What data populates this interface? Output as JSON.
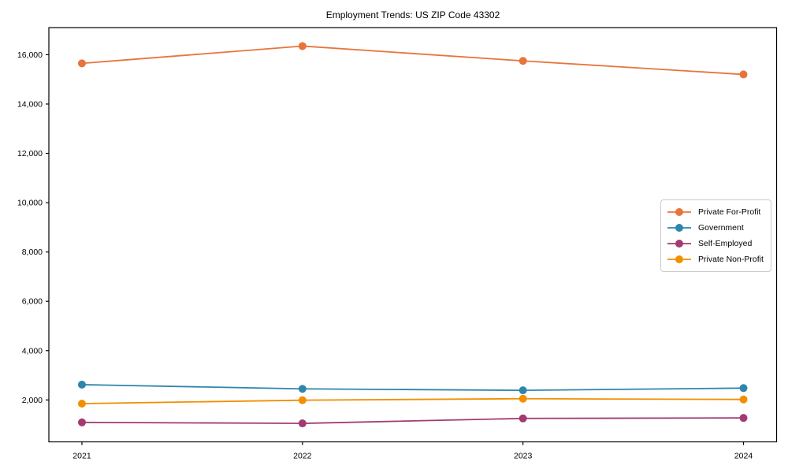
{
  "figure": {
    "title": "Employment Trends: US ZIP Code 43302"
  },
  "chart_data": {
    "type": "line",
    "title": "Employment Trends: US ZIP Code 43302",
    "categories": [
      "2021",
      "2022",
      "2023",
      "2024"
    ],
    "series": [
      {
        "name": "Private For-Profit",
        "color": "#E8743B",
        "values": [
          15650,
          16350,
          15750,
          15200
        ]
      },
      {
        "name": "Government",
        "color": "#2E86AB",
        "values": [
          2620,
          2450,
          2390,
          2480
        ]
      },
      {
        "name": "Self-Employed",
        "color": "#A23B72",
        "values": [
          1090,
          1050,
          1250,
          1270
        ]
      },
      {
        "name": "Private Non-Profit",
        "color": "#F18F01",
        "values": [
          1850,
          1990,
          2050,
          2020
        ]
      }
    ],
    "xlabel": "",
    "ylabel": "",
    "yticks": {
      "values": [
        2000,
        4000,
        6000,
        8000,
        10000,
        12000,
        14000,
        16000
      ],
      "labels": [
        "2,000",
        "4,000",
        "6,000",
        "8,000",
        "10,000",
        "12,000",
        "14,000",
        "16,000"
      ]
    },
    "ylim": [
      300,
      17100
    ],
    "xlim": [
      -0.15,
      3.15
    ],
    "grid": false,
    "legend_position": "center right",
    "marker": "circle",
    "axis_color": "#000000"
  }
}
